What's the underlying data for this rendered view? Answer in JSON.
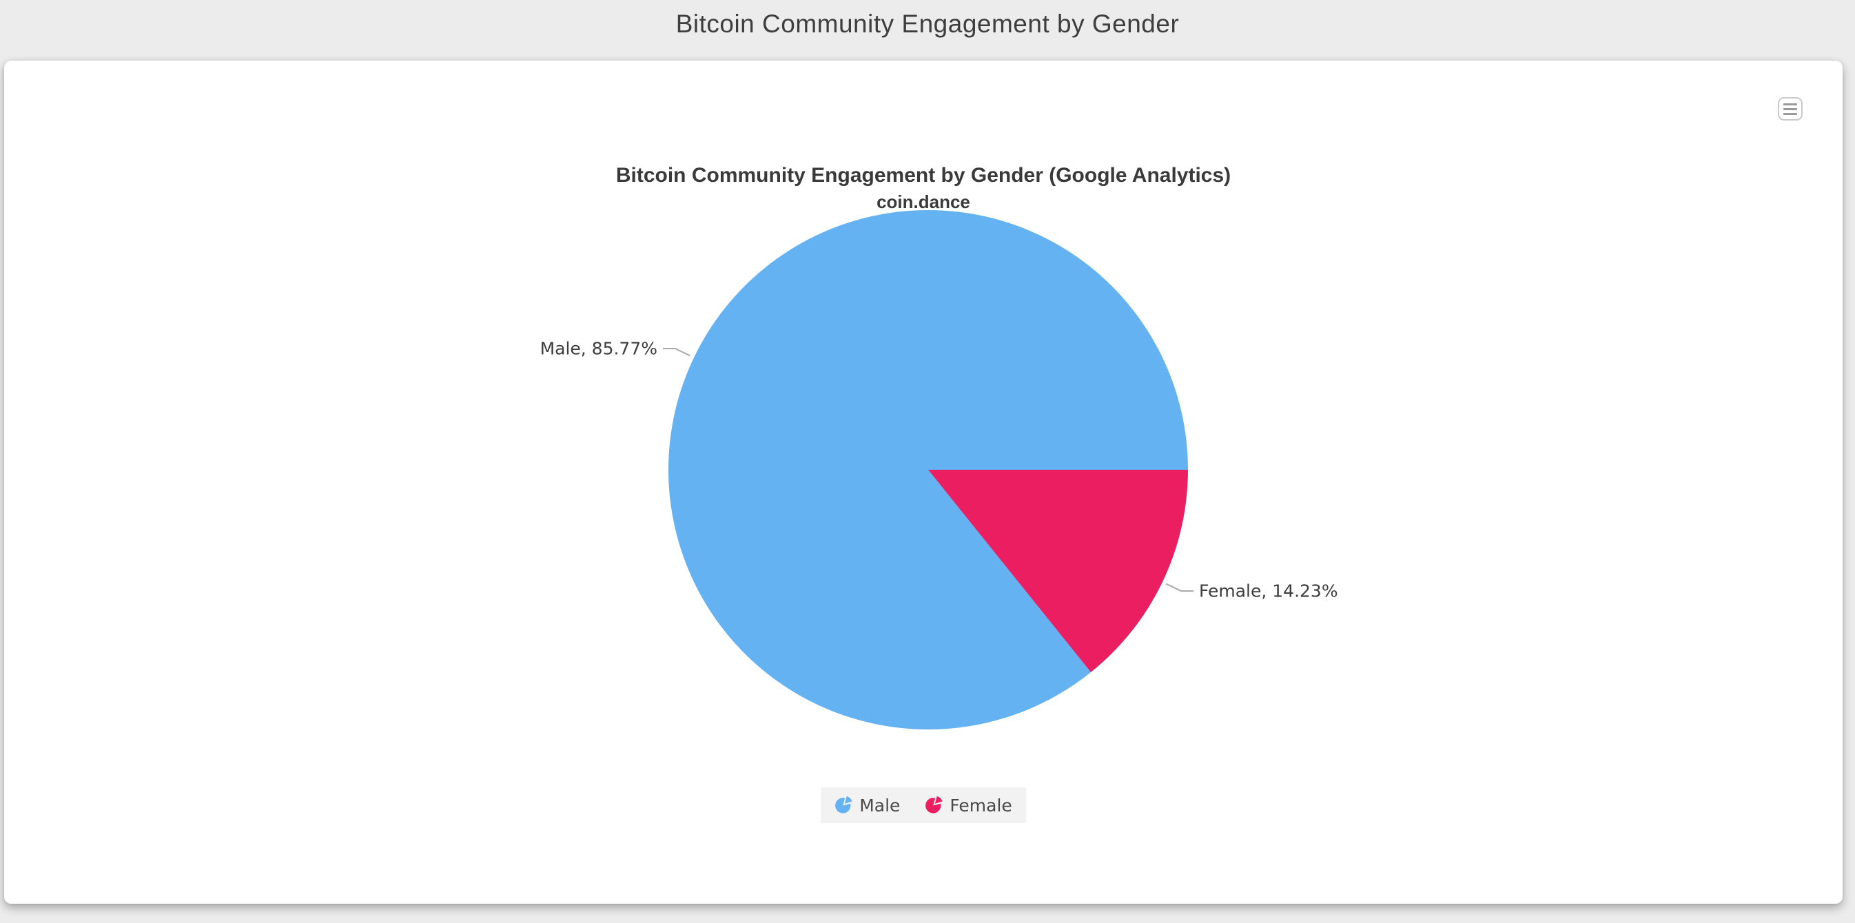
{
  "page": {
    "title": "Bitcoin Community Engagement by Gender"
  },
  "chart": {
    "title": "Bitcoin Community Engagement by Gender (Google Analytics)",
    "subtitle": "coin.dance",
    "export_menu_icon": "hamburger-menu",
    "legend": {
      "items": [
        {
          "label": "Male"
        },
        {
          "label": "Female"
        }
      ]
    }
  },
  "chart_data": {
    "type": "pie",
    "title": "Bitcoin Community Engagement by Gender (Google Analytics)",
    "subtitle": "coin.dance",
    "categories": [
      "Male",
      "Female"
    ],
    "values": [
      85.77,
      14.23
    ],
    "unit": "%",
    "colors": [
      "#64B2F2",
      "#EC1E62"
    ],
    "data_labels": [
      "Male, 85.77%",
      "Female, 14.23%"
    ],
    "legend_position": "bottom",
    "start_angle_deg": 51.23,
    "direction": "clockwise",
    "label_color": "#3d3d3d",
    "connector_color": "#a9a9a9",
    "legend_background": "#f2f2f2"
  }
}
